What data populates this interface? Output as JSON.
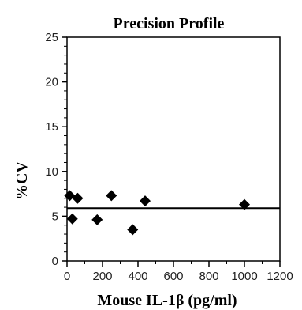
{
  "chart_data": {
    "type": "scatter",
    "title": "Precision Profile",
    "xlabel": "Mouse IL-1β  (pg/ml)",
    "ylabel": "%CV",
    "xlim": [
      0,
      1200
    ],
    "ylim": [
      0,
      25
    ],
    "xticks": [
      0,
      200,
      400,
      600,
      800,
      1000,
      1200
    ],
    "yticks": [
      0,
      5,
      10,
      15,
      20,
      25
    ],
    "grid": false,
    "legend": "none",
    "series": [
      {
        "points": [
          {
            "x": 15,
            "y": 7.3
          },
          {
            "x": 30,
            "y": 4.7
          },
          {
            "x": 60,
            "y": 7.0
          },
          {
            "x": 170,
            "y": 4.6
          },
          {
            "x": 250,
            "y": 7.3
          },
          {
            "x": 370,
            "y": 3.5
          },
          {
            "x": 440,
            "y": 6.7
          },
          {
            "x": 1000,
            "y": 6.3
          }
        ]
      }
    ],
    "reference_line": {
      "y": 5.9
    }
  }
}
